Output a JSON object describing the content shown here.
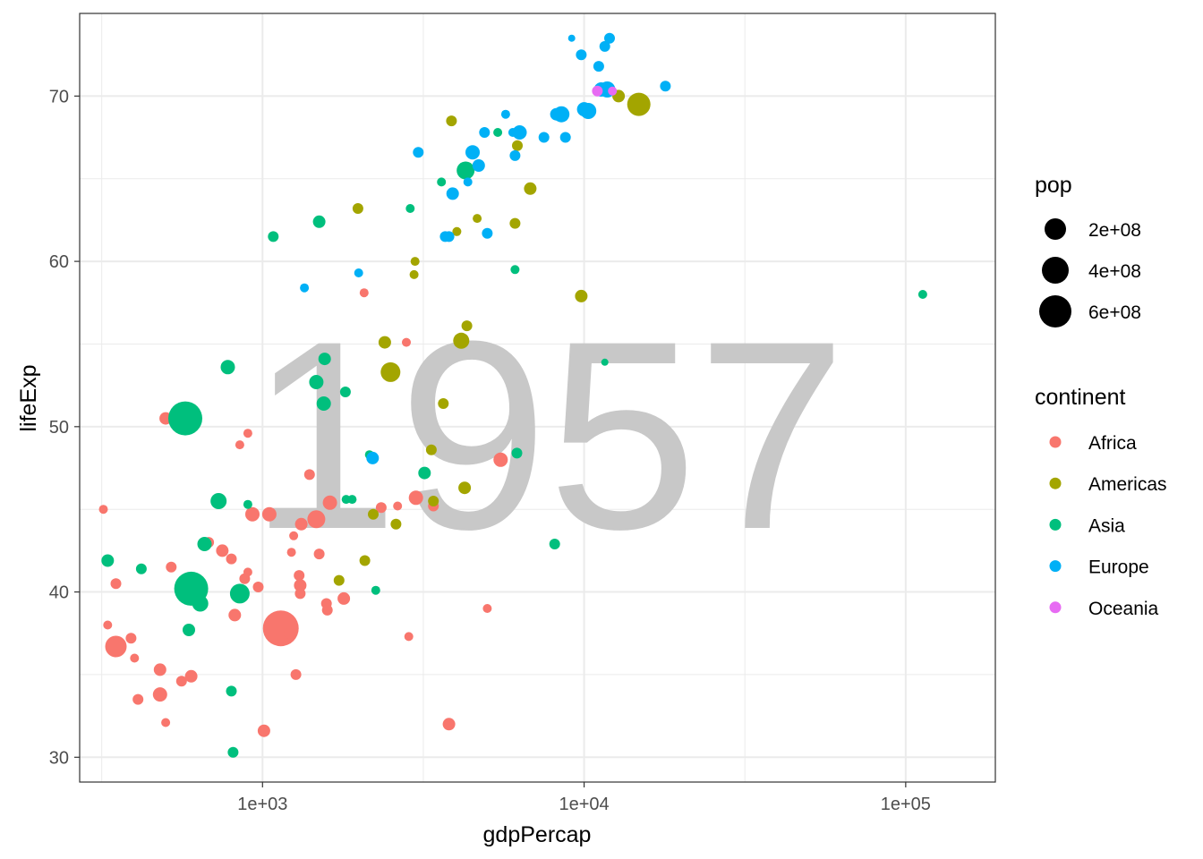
{
  "chart_data": {
    "type": "scatter",
    "xlabel": "gdpPercap",
    "ylabel": "lifeExp",
    "annotation": "1957",
    "x_scale": "log10",
    "xlim": [
      270,
      190000
    ],
    "ylim": [
      28.5,
      75
    ],
    "x_ticks": [
      {
        "value": 1000,
        "label": "1e+03"
      },
      {
        "value": 10000,
        "label": "1e+04"
      },
      {
        "value": 100000,
        "label": "1e+05"
      }
    ],
    "y_ticks": [
      30,
      40,
      50,
      60,
      70
    ],
    "grid": true,
    "legend_position": "right",
    "colors": {
      "Africa": "#F8766D",
      "Americas": "#A3A500",
      "Asia": "#00BF7D",
      "Europe": "#00B0F6",
      "Oceania": "#E76BF3"
    },
    "size_legend": {
      "title": "pop",
      "entries": [
        {
          "value": 200000000,
          "label": "2e+08"
        },
        {
          "value": 400000000,
          "label": "4e+08"
        },
        {
          "value": 600000000,
          "label": "6e+08"
        }
      ]
    },
    "color_legend": {
      "title": "continent",
      "entries": [
        "Africa",
        "Americas",
        "Asia",
        "Europe",
        "Oceania"
      ]
    },
    "series": [
      {
        "name": "Africa",
        "points": [
          [
            320,
            45.0,
            5
          ],
          [
            330,
            38.0,
            5
          ],
          [
            350,
            40.5,
            6
          ],
          [
            350,
            36.7,
            12
          ],
          [
            390,
            37.2,
            6
          ],
          [
            400,
            36.0,
            5
          ],
          [
            410,
            33.5,
            6
          ],
          [
            480,
            35.3,
            7
          ],
          [
            480,
            33.8,
            8
          ],
          [
            500,
            32.1,
            5
          ],
          [
            520,
            41.5,
            6
          ],
          [
            560,
            34.6,
            6
          ],
          [
            600,
            39.5,
            6
          ],
          [
            600,
            34.9,
            7
          ],
          [
            680,
            43.0,
            6
          ],
          [
            750,
            42.5,
            7
          ],
          [
            800,
            42.0,
            6
          ],
          [
            820,
            38.6,
            7
          ],
          [
            850,
            48.9,
            5
          ],
          [
            880,
            40.8,
            6
          ],
          [
            900,
            41.2,
            5
          ],
          [
            900,
            49.6,
            5
          ],
          [
            930,
            44.7,
            8
          ],
          [
            970,
            40.3,
            6
          ],
          [
            1010,
            31.6,
            7
          ],
          [
            1050,
            44.7,
            8
          ],
          [
            1140,
            37.8,
            20
          ],
          [
            1210,
            37.5,
            6
          ],
          [
            1230,
            42.4,
            5
          ],
          [
            1250,
            43.4,
            5
          ],
          [
            1270,
            35.0,
            6
          ],
          [
            1300,
            41.0,
            6
          ],
          [
            1310,
            40.4,
            7
          ],
          [
            1310,
            39.9,
            6
          ],
          [
            1320,
            44.1,
            7
          ],
          [
            1400,
            47.1,
            6
          ],
          [
            1470,
            44.4,
            10
          ],
          [
            1500,
            42.3,
            6
          ],
          [
            1580,
            39.3,
            6
          ],
          [
            1590,
            38.9,
            6
          ],
          [
            1620,
            45.4,
            8
          ],
          [
            1790,
            39.6,
            7
          ],
          [
            2070,
            58.1,
            5
          ],
          [
            2340,
            45.1,
            6
          ],
          [
            2630,
            45.2,
            5
          ],
          [
            2800,
            55.1,
            5
          ],
          [
            2850,
            37.3,
            5
          ],
          [
            3000,
            45.7,
            8
          ],
          [
            3400,
            45.2,
            6
          ],
          [
            3800,
            32.0,
            7
          ],
          [
            5000,
            39.0,
            5
          ],
          [
            5500,
            48.0,
            8
          ],
          [
            500,
            50.5,
            7
          ]
        ]
      },
      {
        "name": "Americas",
        "points": [
          [
            1730,
            40.7,
            6
          ],
          [
            1980,
            63.2,
            6
          ],
          [
            2080,
            41.9,
            6
          ],
          [
            2210,
            44.7,
            6
          ],
          [
            2400,
            55.1,
            7
          ],
          [
            2500,
            53.3,
            11
          ],
          [
            2600,
            44.1,
            6
          ],
          [
            2960,
            59.2,
            5
          ],
          [
            2980,
            60.0,
            5
          ],
          [
            3350,
            48.6,
            6
          ],
          [
            3400,
            45.5,
            6
          ],
          [
            3650,
            51.4,
            6
          ],
          [
            3870,
            68.5,
            6
          ],
          [
            4020,
            61.8,
            5
          ],
          [
            4150,
            55.2,
            9
          ],
          [
            4250,
            46.3,
            7
          ],
          [
            4320,
            56.1,
            6
          ],
          [
            4650,
            62.6,
            5
          ],
          [
            6100,
            62.3,
            6
          ],
          [
            6200,
            67.0,
            6
          ],
          [
            6800,
            64.4,
            7
          ],
          [
            9800,
            57.9,
            7
          ],
          [
            12800,
            70.0,
            7
          ],
          [
            14800,
            69.5,
            13
          ]
        ]
      },
      {
        "name": "Asia",
        "points": [
          [
            330,
            41.9,
            7
          ],
          [
            420,
            41.4,
            6
          ],
          [
            575,
            50.5,
            19
          ],
          [
            590,
            37.7,
            7
          ],
          [
            600,
            40.2,
            19
          ],
          [
            640,
            39.3,
            9
          ],
          [
            660,
            42.9,
            8
          ],
          [
            730,
            45.5,
            9
          ],
          [
            780,
            53.6,
            8
          ],
          [
            800,
            34.0,
            6
          ],
          [
            810,
            30.3,
            6
          ],
          [
            850,
            39.9,
            11
          ],
          [
            900,
            45.3,
            5
          ],
          [
            1080,
            61.5,
            6
          ],
          [
            1470,
            52.7,
            8
          ],
          [
            1500,
            62.4,
            7
          ],
          [
            1550,
            51.4,
            8
          ],
          [
            1560,
            54.1,
            7
          ],
          [
            1810,
            52.1,
            6
          ],
          [
            1820,
            45.6,
            5
          ],
          [
            1900,
            45.6,
            5
          ],
          [
            2150,
            48.3,
            5
          ],
          [
            2250,
            40.1,
            5
          ],
          [
            2880,
            63.2,
            5
          ],
          [
            3190,
            47.2,
            7
          ],
          [
            3600,
            64.8,
            5
          ],
          [
            4280,
            65.5,
            10
          ],
          [
            5390,
            67.8,
            5
          ],
          [
            6100,
            59.5,
            5
          ],
          [
            6180,
            48.4,
            6
          ],
          [
            8100,
            42.9,
            6
          ],
          [
            11600,
            53.9,
            4
          ],
          [
            113000,
            58.0,
            5
          ]
        ]
      },
      {
        "name": "Europe",
        "points": [
          [
            1350,
            58.4,
            5
          ],
          [
            1990,
            59.3,
            5
          ],
          [
            2200,
            48.1,
            7
          ],
          [
            3050,
            66.6,
            6
          ],
          [
            3700,
            61.5,
            6
          ],
          [
            3800,
            61.5,
            6
          ],
          [
            3900,
            64.1,
            7
          ],
          [
            4350,
            64.8,
            5
          ],
          [
            4500,
            66.6,
            8
          ],
          [
            4700,
            65.8,
            7
          ],
          [
            4900,
            67.8,
            6
          ],
          [
            5000,
            61.7,
            6
          ],
          [
            5700,
            68.9,
            5
          ],
          [
            6000,
            67.8,
            5
          ],
          [
            6100,
            66.4,
            6
          ],
          [
            6300,
            67.8,
            8
          ],
          [
            7500,
            67.5,
            6
          ],
          [
            8200,
            68.9,
            7
          ],
          [
            8500,
            68.9,
            9
          ],
          [
            8750,
            67.5,
            6
          ],
          [
            9150,
            73.5,
            4
          ],
          [
            9800,
            72.5,
            6
          ],
          [
            10000,
            69.2,
            8
          ],
          [
            10300,
            69.1,
            9
          ],
          [
            11100,
            71.8,
            6
          ],
          [
            11300,
            70.4,
            8
          ],
          [
            11600,
            73.0,
            6
          ],
          [
            11800,
            70.4,
            9
          ],
          [
            12000,
            73.5,
            6
          ],
          [
            17900,
            70.6,
            6
          ]
        ]
      },
      {
        "name": "Oceania",
        "points": [
          [
            11000,
            70.3,
            6
          ],
          [
            12250,
            70.3,
            5
          ]
        ]
      }
    ]
  }
}
